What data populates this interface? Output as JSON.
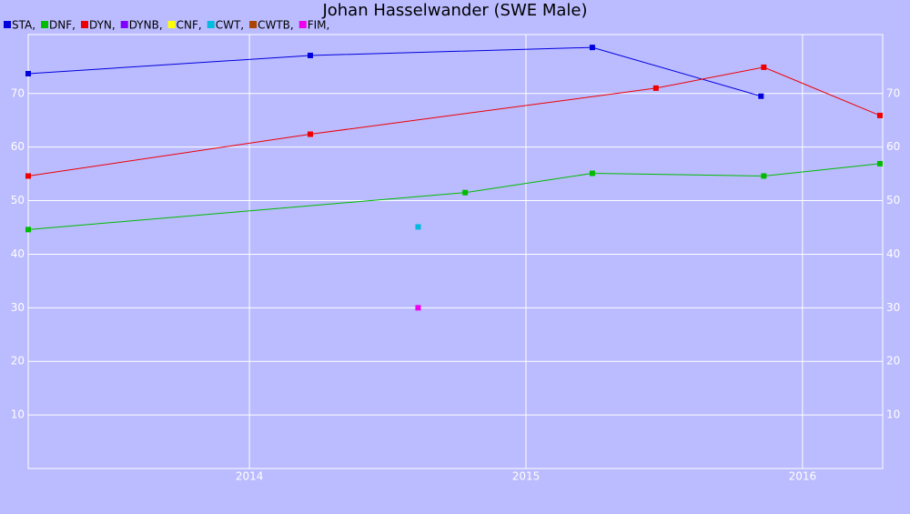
{
  "chart_data": {
    "type": "line",
    "title": "Johan Hasselwander (SWE Male)",
    "xlim": [
      2013.2,
      2016.29
    ],
    "xticks": [
      2014,
      2015,
      2016
    ],
    "ylim": [
      0,
      81
    ],
    "yticks": [
      10,
      20,
      30,
      40,
      50,
      60,
      70
    ],
    "grid": true,
    "series": [
      {
        "name": "STA,",
        "color": "#0000dd",
        "x": [
          2013.2,
          2014.22,
          2015.24,
          2015.85
        ],
        "values": [
          73.7,
          77.1,
          78.6,
          69.5
        ]
      },
      {
        "name": "DNF,",
        "color": "#00bb00",
        "x": [
          2013.2,
          2014.78,
          2015.24,
          2015.86,
          2016.28
        ],
        "values": [
          44.6,
          51.5,
          55.1,
          54.6,
          56.9
        ]
      },
      {
        "name": "DYN,",
        "color": "#ee0000",
        "x": [
          2013.2,
          2014.22,
          2015.47,
          2015.86,
          2016.28
        ],
        "values": [
          54.6,
          62.4,
          71.0,
          74.9,
          65.9
        ]
      },
      {
        "name": "DYNB,",
        "color": "#7f00ff",
        "x": [],
        "values": []
      },
      {
        "name": "CNF,",
        "color": "#ffff00",
        "x": [],
        "values": []
      },
      {
        "name": "CWT,",
        "color": "#00bbdd",
        "x": [
          2014.61
        ],
        "values": [
          45.1
        ]
      },
      {
        "name": "CWTB,",
        "color": "#aa4400",
        "x": [],
        "values": []
      },
      {
        "name": "FIM,",
        "color": "#ee00ee",
        "x": [
          2014.61
        ],
        "values": [
          30.0
        ]
      }
    ]
  }
}
